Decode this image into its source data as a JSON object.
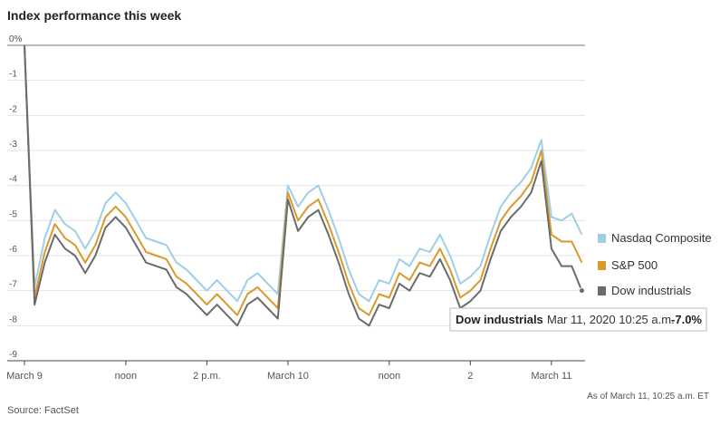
{
  "chart_data": {
    "type": "line",
    "title": "Index performance this week",
    "categories": [
      "March 9",
      null,
      null,
      null,
      null,
      null,
      null,
      null,
      null,
      null,
      "noon",
      null,
      null,
      null,
      null,
      null,
      null,
      null,
      "2 p.m.",
      null,
      null,
      null,
      null,
      null,
      null,
      null,
      "March 10",
      null,
      null,
      null,
      null,
      null,
      null,
      null,
      null,
      null,
      "noon",
      null,
      null,
      null,
      null,
      null,
      null,
      null,
      "2",
      null,
      null,
      null,
      null,
      null,
      null,
      null,
      "March 11",
      null,
      null,
      null
    ],
    "series": [
      {
        "name": "Nasdaq Composite",
        "color": "#9dcfe6",
        "values": [
          0,
          -6.9,
          -5.5,
          -4.7,
          -5.1,
          -5.3,
          -5.8,
          -5.3,
          -4.5,
          -4.2,
          -4.5,
          -5.0,
          -5.5,
          -5.6,
          -5.7,
          -6.2,
          -6.4,
          -6.7,
          -7.0,
          -6.7,
          -7.0,
          -7.3,
          -6.7,
          -6.5,
          -6.8,
          -7.1,
          -4.0,
          -4.6,
          -4.2,
          -4.0,
          -4.7,
          -5.5,
          -6.4,
          -7.1,
          -7.3,
          -6.7,
          -6.8,
          -6.1,
          -6.3,
          -5.8,
          -5.9,
          -5.4,
          -6.0,
          -6.8,
          -6.6,
          -6.3,
          -5.4,
          -4.6,
          -4.2,
          -3.9,
          -3.5,
          -2.7,
          -4.9,
          -5.0,
          -4.8,
          -5.4
        ]
      },
      {
        "name": "S&P 500",
        "color": "#d99a2b",
        "values": [
          0,
          -7.2,
          -5.9,
          -5.1,
          -5.5,
          -5.7,
          -6.2,
          -5.7,
          -4.9,
          -4.6,
          -4.9,
          -5.4,
          -5.9,
          -6.0,
          -6.1,
          -6.6,
          -6.8,
          -7.1,
          -7.4,
          -7.1,
          -7.4,
          -7.7,
          -7.1,
          -6.9,
          -7.2,
          -7.5,
          -4.2,
          -5.0,
          -4.6,
          -4.4,
          -5.1,
          -5.9,
          -6.8,
          -7.5,
          -7.7,
          -7.1,
          -7.2,
          -6.5,
          -6.7,
          -6.2,
          -6.3,
          -5.8,
          -6.4,
          -7.2,
          -7.0,
          -6.7,
          -5.8,
          -5.0,
          -4.6,
          -4.3,
          -3.9,
          -3.0,
          -5.4,
          -5.6,
          -5.6,
          -6.2
        ]
      },
      {
        "name": "Dow industrials",
        "color": "#6b6b6b",
        "values": [
          0,
          -7.4,
          -6.2,
          -5.4,
          -5.8,
          -6.0,
          -6.5,
          -6.0,
          -5.2,
          -4.9,
          -5.2,
          -5.7,
          -6.2,
          -6.3,
          -6.4,
          -6.9,
          -7.1,
          -7.4,
          -7.7,
          -7.4,
          -7.7,
          -8.0,
          -7.4,
          -7.2,
          -7.5,
          -7.8,
          -4.4,
          -5.3,
          -4.9,
          -4.7,
          -5.4,
          -6.2,
          -7.1,
          -7.8,
          -8.0,
          -7.4,
          -7.5,
          -6.8,
          -7.0,
          -6.5,
          -6.6,
          -6.1,
          -6.7,
          -7.5,
          -7.3,
          -7.0,
          -6.1,
          -5.3,
          -4.9,
          -4.6,
          -4.2,
          -3.3,
          -5.8,
          -6.3,
          -6.3,
          -7.0
        ]
      }
    ],
    "ylim": [
      -9,
      0
    ],
    "yticks": [
      {
        "value": 0,
        "label": "0%"
      },
      -1,
      -2,
      -3,
      -4,
      -5,
      -6,
      -7,
      -8,
      -9
    ],
    "grid": true,
    "legend": "right",
    "tooltip": {
      "series": "Dow industrials",
      "time": "Mar 11, 2020 10:25 a.m.",
      "value": "-7.0%"
    },
    "note": "As of March 11, 10:25 a.m. ET",
    "source": "Source: FactSet"
  }
}
